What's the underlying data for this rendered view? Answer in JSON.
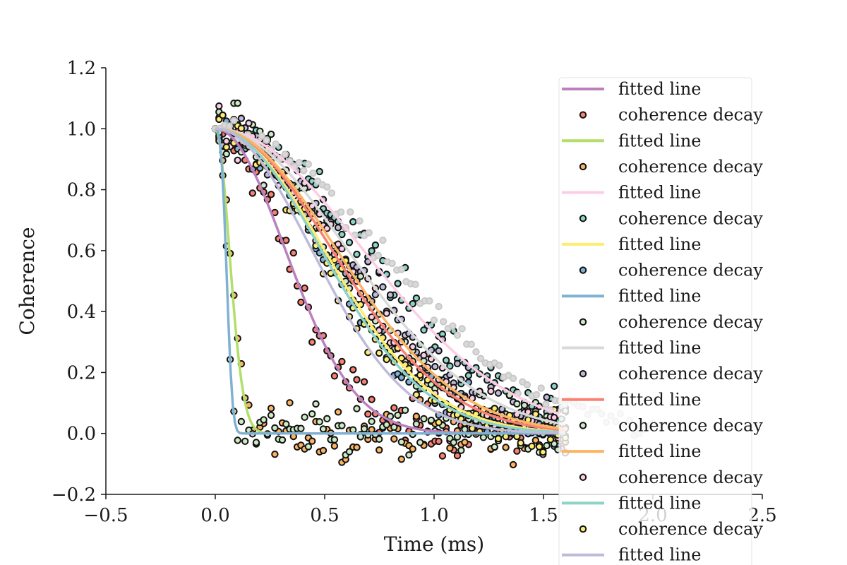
{
  "chart_data": {
    "type": "scatter",
    "title": "",
    "xlabel": "Time (ms)",
    "ylabel": "Coherence",
    "xlim": [
      -0.5,
      2.5
    ],
    "ylim": [
      -0.2,
      1.2
    ],
    "xticks": [
      -0.5,
      0.0,
      0.5,
      1.0,
      1.5,
      2.0,
      2.5
    ],
    "yticks": [
      -0.2,
      0.0,
      0.2,
      0.4,
      0.6,
      0.8,
      1.0,
      1.2
    ],
    "xtick_labels": [
      "−0.5",
      "0.0",
      "0.5",
      "1.0",
      "1.5",
      "2.0",
      "2.5"
    ],
    "ytick_labels": [
      "−0.2",
      "0.0",
      "0.2",
      "0.4",
      "0.6",
      "0.8",
      "1.0",
      "1.2"
    ],
    "grid": false,
    "legend_position": "right",
    "series": [
      {
        "name": "fitted line",
        "kind": "line",
        "color": "#bc80bd",
        "T2": 0.45,
        "n": 2.0,
        "x_max": 1.6
      },
      {
        "name": "coherence decay",
        "kind": "scatter",
        "color": "#fb8072",
        "T2": 0.45,
        "n": 2.0,
        "noise": 0.08
      },
      {
        "name": "fitted line",
        "kind": "line",
        "color": "#b3de69",
        "T2": 0.09,
        "n": 2.0,
        "x_max": 1.6
      },
      {
        "name": "coherence decay",
        "kind": "scatter",
        "color": "#fdb462",
        "T2": 0.09,
        "n": 2.0,
        "noise": 0.08
      },
      {
        "name": "fitted line",
        "kind": "line",
        "color": "#fccde5",
        "T2": 0.95,
        "n": 2.0,
        "x_max": 1.6
      },
      {
        "name": "coherence decay",
        "kind": "scatter",
        "color": "#8dd3c7",
        "T2": 0.95,
        "n": 2.0,
        "noise": 0.08
      },
      {
        "name": "fitted line",
        "kind": "line",
        "color": "#ffed6f",
        "T2": 0.7,
        "n": 2.0,
        "x_max": 1.6
      },
      {
        "name": "coherence decay",
        "kind": "scatter",
        "color": "#80b1d3",
        "T2": 0.7,
        "n": 2.0,
        "noise": 0.08
      },
      {
        "name": "fitted line",
        "kind": "line",
        "color": "#80b1d3",
        "T2": 0.06,
        "n": 3.0,
        "x_max": 1.6
      },
      {
        "name": "coherence decay",
        "kind": "scatter",
        "color": "#ccebc5",
        "T2": 0.06,
        "n": 3.0,
        "noise": 0.08
      },
      {
        "name": "fitted line",
        "kind": "line",
        "color": "#d9d9d9",
        "T2": 0.85,
        "n": 2.0,
        "x_max": 1.6
      },
      {
        "name": "coherence decay",
        "kind": "scatter",
        "color": "#bebada",
        "T2": 0.85,
        "n": 2.0,
        "noise": 0.08
      },
      {
        "name": "fitted line",
        "kind": "line",
        "color": "#fb8072",
        "T2": 0.75,
        "n": 2.0,
        "x_max": 1.6
      },
      {
        "name": "coherence decay",
        "kind": "scatter",
        "color": "#ccebc5",
        "T2": 0.75,
        "n": 2.0,
        "noise": 0.08
      },
      {
        "name": "fitted line",
        "kind": "line",
        "color": "#fdb462",
        "T2": 0.78,
        "n": 2.0,
        "x_max": 1.6
      },
      {
        "name": "coherence decay",
        "kind": "scatter",
        "color": "#fccde5",
        "T2": 0.78,
        "n": 2.0,
        "noise": 0.08
      },
      {
        "name": "fitted line",
        "kind": "line",
        "color": "#8dd3c7",
        "T2": 0.68,
        "n": 2.0,
        "x_max": 1.6
      },
      {
        "name": "coherence decay",
        "kind": "scatter",
        "color": "#ffed6f",
        "T2": 0.68,
        "n": 2.0,
        "noise": 0.08
      },
      {
        "name": "fitted line",
        "kind": "line",
        "color": "#bebada",
        "T2": 0.62,
        "n": 2.0,
        "x_max": 1.6
      },
      {
        "name": "coherence decay",
        "kind": "scatter",
        "color": "#d9d9d9",
        "T2": 1.05,
        "n": 2.0,
        "noise": 0.04
      }
    ]
  }
}
